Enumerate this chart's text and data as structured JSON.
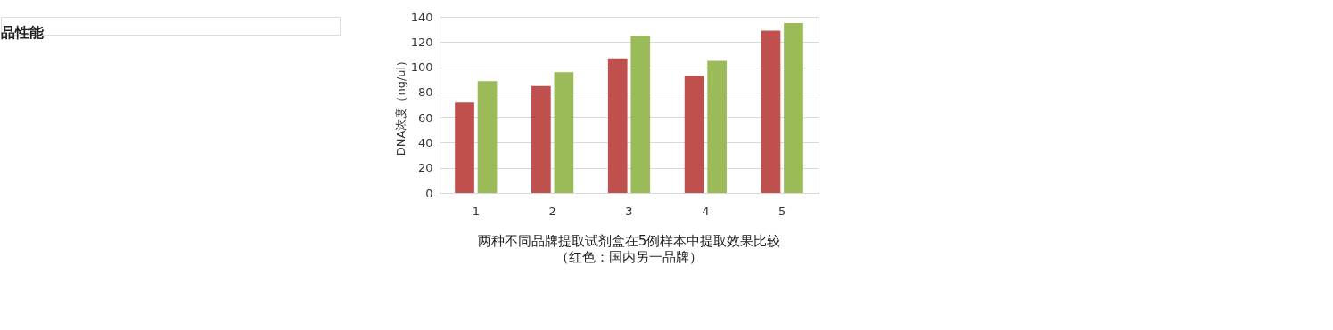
{
  "chart_data": {
    "type": "bar",
    "title": "两种不同品牌提取试剂盒在5例样本中提取效果比较",
    "subtitle": "（红色：国内另一品牌）",
    "ylabel": "DNA浓度（ng/ul）",
    "annotations": [
      "品性能"
    ],
    "categories": [
      "1",
      "2",
      "3",
      "4",
      "5"
    ],
    "series": [
      {
        "color": "#c0504d",
        "values": [
          72,
          85,
          107,
          93,
          129
        ]
      },
      {
        "color": "#9bbb59",
        "values": [
          89,
          96,
          125,
          105,
          135
        ]
      }
    ],
    "ylim": [
      0,
      140
    ],
    "yticks": [
      0,
      20,
      40,
      60,
      80,
      100,
      120,
      140
    ],
    "grid": "y",
    "legend": false
  }
}
